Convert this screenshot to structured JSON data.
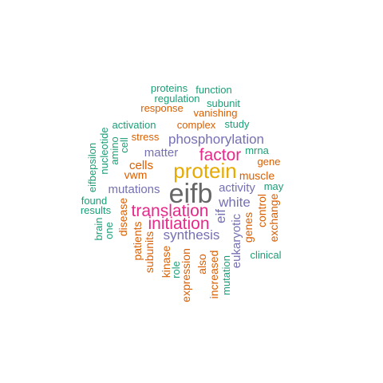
{
  "palette": {
    "teal": "#1b9e77",
    "orange": "#d95f02",
    "purple": "#7570b3",
    "magenta": "#e7298a",
    "gold": "#e6ab02",
    "gray": "#666666"
  },
  "words": [
    {
      "text": "eifb",
      "color": "gray",
      "weight": 10
    },
    {
      "text": "protein",
      "color": "gold",
      "weight": 9
    },
    {
      "text": "translation",
      "color": "magenta",
      "weight": 8
    },
    {
      "text": "initiation",
      "color": "magenta",
      "weight": 8
    },
    {
      "text": "factor",
      "color": "magenta",
      "weight": 7
    },
    {
      "text": "phosphorylation",
      "color": "purple",
      "weight": 6
    },
    {
      "text": "synthesis",
      "color": "purple",
      "weight": 6
    },
    {
      "text": "white",
      "color": "purple",
      "weight": 6
    },
    {
      "text": "eif",
      "color": "purple",
      "weight": 6
    },
    {
      "text": "mutations",
      "color": "purple",
      "weight": 5
    },
    {
      "text": "matter",
      "color": "purple",
      "weight": 5
    },
    {
      "text": "activity",
      "color": "purple",
      "weight": 5
    },
    {
      "text": "eukaryotic",
      "color": "purple",
      "weight": 5
    },
    {
      "text": "cells",
      "color": "orange",
      "weight": 5
    },
    {
      "text": "vwm",
      "color": "orange",
      "weight": 4
    },
    {
      "text": "muscle",
      "color": "orange",
      "weight": 4
    },
    {
      "text": "complex",
      "color": "orange",
      "weight": 4
    },
    {
      "text": "stress",
      "color": "orange",
      "weight": 4
    },
    {
      "text": "disease",
      "color": "orange",
      "weight": 4
    },
    {
      "text": "patients",
      "color": "orange",
      "weight": 4
    },
    {
      "text": "subunits",
      "color": "orange",
      "weight": 4
    },
    {
      "text": "kinase",
      "color": "orange",
      "weight": 4
    },
    {
      "text": "expression",
      "color": "orange",
      "weight": 4
    },
    {
      "text": "also",
      "color": "orange",
      "weight": 4
    },
    {
      "text": "increased",
      "color": "orange",
      "weight": 4
    },
    {
      "text": "genes",
      "color": "orange",
      "weight": 4
    },
    {
      "text": "control",
      "color": "orange",
      "weight": 4
    },
    {
      "text": "exchange",
      "color": "orange",
      "weight": 4
    },
    {
      "text": "gene",
      "color": "orange",
      "weight": 4
    },
    {
      "text": "response",
      "color": "orange",
      "weight": 4
    },
    {
      "text": "vanishing",
      "color": "orange",
      "weight": 4
    },
    {
      "text": "proteins",
      "color": "teal",
      "weight": 3
    },
    {
      "text": "function",
      "color": "teal",
      "weight": 3
    },
    {
      "text": "regulation",
      "color": "teal",
      "weight": 3
    },
    {
      "text": "subunit",
      "color": "teal",
      "weight": 3
    },
    {
      "text": "activation",
      "color": "teal",
      "weight": 3
    },
    {
      "text": "study",
      "color": "teal",
      "weight": 3
    },
    {
      "text": "mrna",
      "color": "teal",
      "weight": 3
    },
    {
      "text": "may",
      "color": "teal",
      "weight": 3
    },
    {
      "text": "clinical",
      "color": "teal",
      "weight": 3
    },
    {
      "text": "mutation",
      "color": "teal",
      "weight": 3
    },
    {
      "text": "role",
      "color": "teal",
      "weight": 3
    },
    {
      "text": "found",
      "color": "teal",
      "weight": 3
    },
    {
      "text": "results",
      "color": "teal",
      "weight": 3
    },
    {
      "text": "brain",
      "color": "teal",
      "weight": 3
    },
    {
      "text": "one",
      "color": "teal",
      "weight": 3
    },
    {
      "text": "eifbepsilon",
      "color": "teal",
      "weight": 3
    },
    {
      "text": "nucleotide",
      "color": "teal",
      "weight": 3
    },
    {
      "text": "amino",
      "color": "teal",
      "weight": 3
    },
    {
      "text": "cell",
      "color": "teal",
      "weight": 3
    }
  ]
}
